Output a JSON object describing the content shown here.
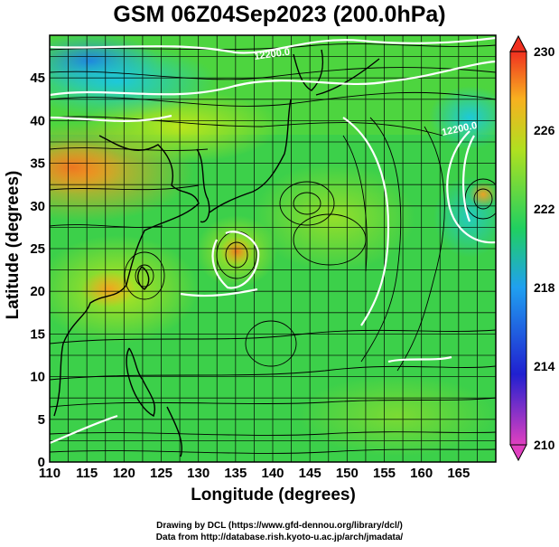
{
  "title": "GSM 06Z04Sep2023 (200.0hPa)",
  "x_axis": {
    "label": "Longitude (degrees)",
    "ticks": [
      "110",
      "115",
      "120",
      "125",
      "130",
      "135",
      "140",
      "145",
      "150",
      "155",
      "160",
      "165"
    ]
  },
  "y_axis": {
    "label": "Latitude (degrees)",
    "ticks": [
      "0",
      "5",
      "10",
      "15",
      "20",
      "25",
      "30",
      "35",
      "40",
      "45"
    ]
  },
  "colorbar": {
    "ticks": [
      "210",
      "214",
      "218",
      "222",
      "226",
      "230"
    ],
    "colors": [
      "#e040c0",
      "#2020d0",
      "#20a0f0",
      "#20d060",
      "#b0e020",
      "#f8b020",
      "#f03020"
    ]
  },
  "contour_labels": [
    "12200.0",
    "12200.0"
  ],
  "credits": {
    "line1": "Drawing by DCL (https://www.gfd-dennou.org/library/dcl/)",
    "line2": "Data from http://database.rish.kyoto-u.ac.jp/arch/jmadata/"
  }
}
